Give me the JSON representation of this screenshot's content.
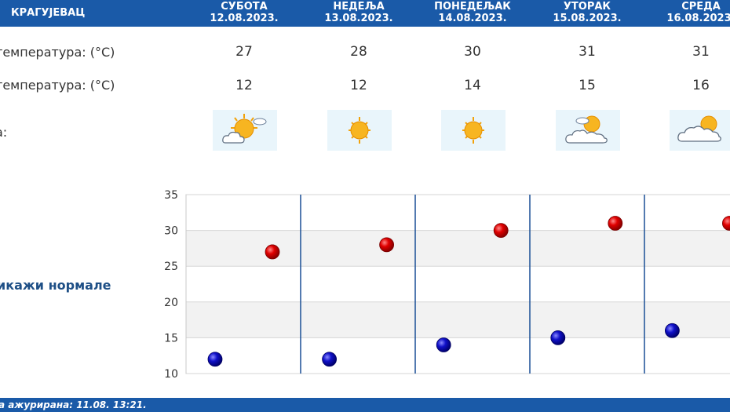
{
  "header": {
    "city": "КРАГУЈЕВАЦ",
    "days": [
      {
        "name": "СУБОТА",
        "date": "12.08.2023."
      },
      {
        "name": "НЕДЕЉА",
        "date": "13.08.2023."
      },
      {
        "name": "ПОНЕДЕЉАК",
        "date": "14.08.2023."
      },
      {
        "name": "УТОРАК",
        "date": "15.08.2023."
      },
      {
        "name": "СРЕДА",
        "date": "16.08.2023."
      }
    ]
  },
  "rows": {
    "max_label": "температура: (°C)",
    "min_label": "температура: (°C)",
    "weather_label": "а:",
    "max_values": [
      "27",
      "28",
      "30",
      "31",
      "31"
    ],
    "min_values": [
      "12",
      "12",
      "14",
      "15",
      "16"
    ],
    "icons": [
      "sun-cloud-icon",
      "sun-icon",
      "sun-icon",
      "cloud-sun-icon",
      "cloud-sun-icon"
    ]
  },
  "normals_link": "икажи нормале",
  "chart_data": {
    "type": "scatter",
    "categories": [
      "СУБОТА",
      "НЕДЕЉА",
      "ПОНЕДЕЉАК",
      "УТОРАК",
      "СРЕДА"
    ],
    "series": [
      {
        "values": [
          27,
          28,
          30,
          31,
          31
        ],
        "color": "#cc0000"
      },
      {
        "values": [
          12,
          12,
          14,
          15,
          16
        ],
        "color": "#0000aa"
      }
    ],
    "yticks": [
      10,
      15,
      20,
      25,
      30,
      35
    ],
    "ylim": [
      10,
      35
    ],
    "grid": true
  },
  "footer": {
    "updated": "а ажурирана:  11.08.  13:21."
  }
}
